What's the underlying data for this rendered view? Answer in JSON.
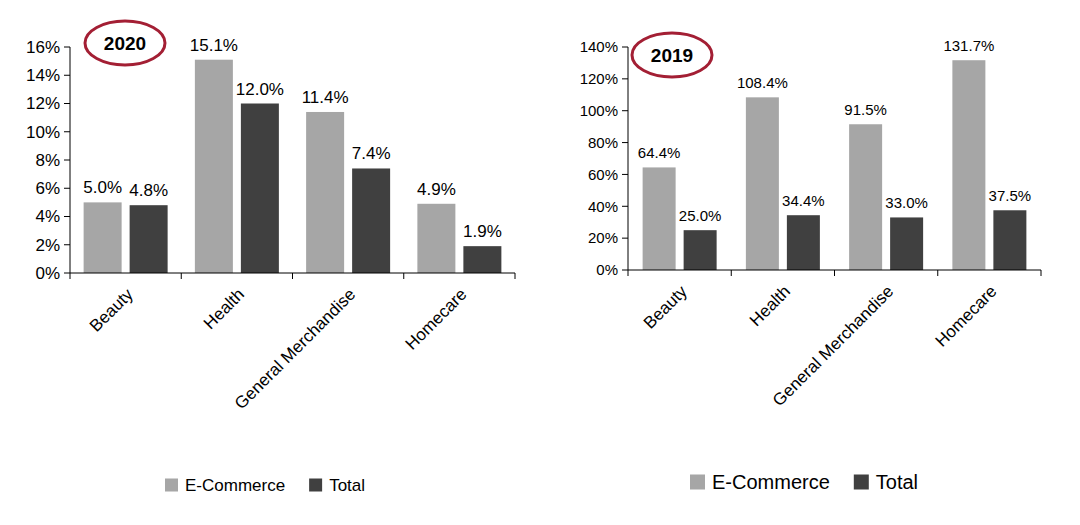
{
  "chart_data": [
    {
      "type": "bar",
      "title": "2020",
      "categories": [
        "Beauty",
        "Health",
        "General Merchandise",
        "Homecare"
      ],
      "series": [
        {
          "name": "E-Commerce",
          "color": "#a6a6a6",
          "values": [
            5.0,
            15.1,
            11.4,
            4.9
          ],
          "value_labels": [
            "5.0%",
            "15.1%",
            "11.4%",
            "4.9%"
          ]
        },
        {
          "name": "Total",
          "color": "#404040",
          "values": [
            4.8,
            12.0,
            7.4,
            1.9
          ],
          "value_labels": [
            "4.8%",
            "12.0%",
            "7.4%",
            "1.9%"
          ]
        }
      ],
      "ylim": [
        0,
        16
      ],
      "yticks": [
        {
          "value": 0,
          "label": "0%"
        },
        {
          "value": 2,
          "label": "2%"
        },
        {
          "value": 4,
          "label": "4%"
        },
        {
          "value": 6,
          "label": "6%"
        },
        {
          "value": 8,
          "label": "8%"
        },
        {
          "value": 10,
          "label": "10%"
        },
        {
          "value": 12,
          "label": "12%"
        },
        {
          "value": 14,
          "label": "14%"
        },
        {
          "value": 16,
          "label": "16%"
        }
      ],
      "grid": false,
      "legend": "bottom",
      "data_labels": true
    },
    {
      "type": "bar",
      "title": "2019",
      "categories": [
        "Beauty",
        "Health",
        "General Merchandise",
        "Homecare"
      ],
      "series": [
        {
          "name": "E-Commerce",
          "color": "#a6a6a6",
          "values": [
            64.4,
            108.4,
            91.5,
            131.7
          ],
          "value_labels": [
            "64.4%",
            "108.4%",
            "91.5%",
            "131.7%"
          ]
        },
        {
          "name": "Total",
          "color": "#404040",
          "values": [
            25.0,
            34.4,
            33.0,
            37.5
          ],
          "value_labels": [
            "25.0%",
            "34.4%",
            "33.0%",
            "37.5%"
          ]
        }
      ],
      "ylim": [
        0,
        140
      ],
      "yticks": [
        {
          "value": 0,
          "label": "0%"
        },
        {
          "value": 20,
          "label": "20%"
        },
        {
          "value": 40,
          "label": "40%"
        },
        {
          "value": 60,
          "label": "60%"
        },
        {
          "value": 80,
          "label": "80%"
        },
        {
          "value": 100,
          "label": "100%"
        },
        {
          "value": 120,
          "label": "120%"
        },
        {
          "value": 140,
          "label": "140%"
        }
      ],
      "grid": false,
      "legend": "bottom",
      "data_labels": true
    }
  ]
}
